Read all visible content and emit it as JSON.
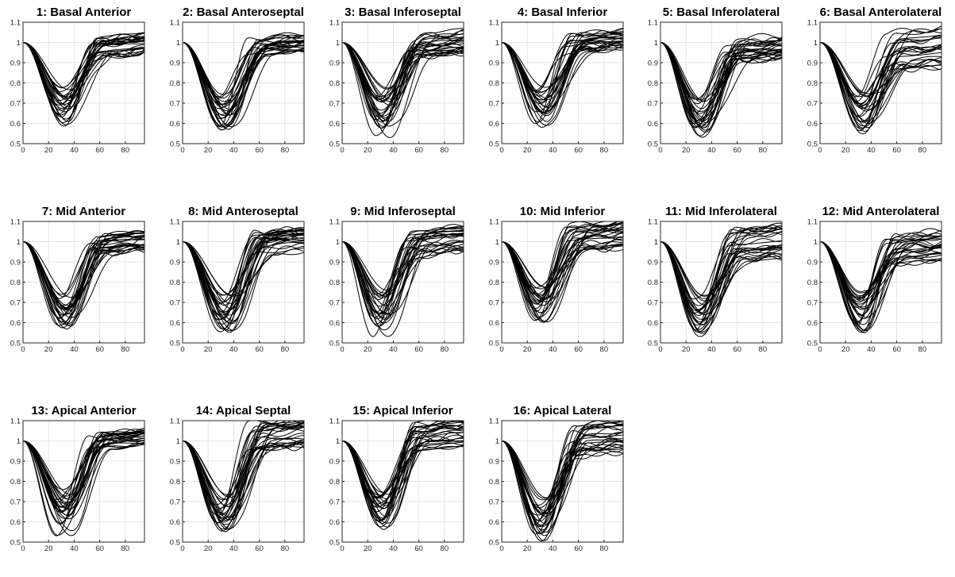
{
  "chart_data": {
    "type": "line",
    "xlim": [
      0,
      95
    ],
    "ylim": [
      0.5,
      1.1
    ],
    "xticks": [
      "0",
      "20",
      "40",
      "60",
      "80"
    ],
    "yticks": [
      "0.5",
      "0.6",
      "0.7",
      "0.8",
      "0.9",
      "1",
      "1.1"
    ],
    "grid": true,
    "line_color": "#000000",
    "curves_per_panel": 28,
    "panels": [
      {
        "title": "1: Basal Anterior",
        "curves": {
          "min_t": [
            28,
            36
          ],
          "min_v": [
            0.58,
            0.78
          ],
          "rise_w": [
            10,
            18
          ],
          "end_v": [
            0.92,
            1.03
          ]
        }
      },
      {
        "title": "2: Basal Anteroseptal",
        "curves": {
          "min_t": [
            28,
            38
          ],
          "min_v": [
            0.56,
            0.76
          ],
          "rise_w": [
            10,
            18
          ],
          "end_v": [
            0.94,
            1.02
          ]
        }
      },
      {
        "title": "3: Basal Inferoseptal",
        "curves": {
          "min_t": [
            26,
            38
          ],
          "min_v": [
            0.52,
            0.78
          ],
          "rise_w": [
            10,
            18
          ],
          "end_v": [
            0.92,
            1.05
          ]
        }
      },
      {
        "title": "4: Basal Inferior",
        "curves": {
          "min_t": [
            26,
            36
          ],
          "min_v": [
            0.58,
            0.78
          ],
          "rise_w": [
            10,
            18
          ],
          "end_v": [
            0.95,
            1.04
          ]
        }
      },
      {
        "title": "5: Basal Inferolateral",
        "curves": {
          "min_t": [
            26,
            36
          ],
          "min_v": [
            0.52,
            0.72
          ],
          "rise_w": [
            10,
            18
          ],
          "end_v": [
            0.9,
            1.03
          ]
        }
      },
      {
        "title": "6: Basal Anterolateral",
        "curves": {
          "min_t": [
            28,
            38
          ],
          "min_v": [
            0.54,
            0.76
          ],
          "rise_w": [
            10,
            18
          ],
          "end_v": [
            0.86,
            1.05
          ]
        }
      },
      {
        "title": "7: Mid Anterior",
        "curves": {
          "min_t": [
            28,
            38
          ],
          "min_v": [
            0.56,
            0.74
          ],
          "rise_w": [
            10,
            18
          ],
          "end_v": [
            0.94,
            1.04
          ]
        }
      },
      {
        "title": "8: Mid Anteroseptal",
        "curves": {
          "min_t": [
            28,
            40
          ],
          "min_v": [
            0.55,
            0.74
          ],
          "rise_w": [
            10,
            18
          ],
          "end_v": [
            0.93,
            1.06
          ]
        }
      },
      {
        "title": "9: Mid Inferoseptal",
        "curves": {
          "min_t": [
            24,
            36
          ],
          "min_v": [
            0.53,
            0.76
          ],
          "rise_w": [
            10,
            18
          ],
          "end_v": [
            0.93,
            1.07
          ]
        }
      },
      {
        "title": "10: Mid Inferior",
        "curves": {
          "min_t": [
            26,
            36
          ],
          "min_v": [
            0.6,
            0.78
          ],
          "rise_w": [
            10,
            18
          ],
          "end_v": [
            0.95,
            1.08
          ]
        }
      },
      {
        "title": "11: Mid Inferolateral",
        "curves": {
          "min_t": [
            26,
            36
          ],
          "min_v": [
            0.52,
            0.74
          ],
          "rise_w": [
            10,
            18
          ],
          "end_v": [
            0.9,
            1.06
          ]
        }
      },
      {
        "title": "12: Mid Anterolateral",
        "curves": {
          "min_t": [
            28,
            36
          ],
          "min_v": [
            0.55,
            0.76
          ],
          "rise_w": [
            10,
            18
          ],
          "end_v": [
            0.88,
            1.04
          ]
        }
      },
      {
        "title": "13: Apical Anterior",
        "curves": {
          "min_t": [
            26,
            38
          ],
          "min_v": [
            0.53,
            0.76
          ],
          "rise_w": [
            10,
            18
          ],
          "end_v": [
            0.96,
            1.04
          ]
        }
      },
      {
        "title": "14: Apical Septal",
        "curves": {
          "min_t": [
            26,
            38
          ],
          "min_v": [
            0.54,
            0.74
          ],
          "rise_w": [
            10,
            18
          ],
          "end_v": [
            0.95,
            1.09
          ]
        }
      },
      {
        "title": "15: Apical Inferior",
        "curves": {
          "min_t": [
            26,
            36
          ],
          "min_v": [
            0.56,
            0.75
          ],
          "rise_w": [
            10,
            18
          ],
          "end_v": [
            0.95,
            1.09
          ]
        }
      },
      {
        "title": "16: Apical Lateral",
        "curves": {
          "min_t": [
            26,
            36
          ],
          "min_v": [
            0.5,
            0.72
          ],
          "rise_w": [
            10,
            18
          ],
          "end_v": [
            0.92,
            1.08
          ]
        }
      }
    ]
  }
}
